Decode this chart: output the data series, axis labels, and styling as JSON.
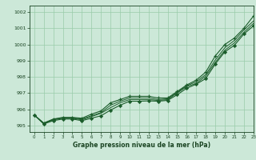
{
  "xlabel": "Graphe pression niveau de la mer (hPa)",
  "background_color": "#cce8d8",
  "grid_color": "#99ccaa",
  "line_color": "#1a5c2a",
  "xlim": [
    -0.5,
    23
  ],
  "ylim": [
    994.6,
    1002.4
  ],
  "yticks": [
    995,
    996,
    997,
    998,
    999,
    1000,
    1001,
    1002
  ],
  "xticks": [
    0,
    1,
    2,
    3,
    4,
    5,
    6,
    7,
    8,
    9,
    10,
    11,
    12,
    13,
    14,
    15,
    16,
    17,
    18,
    19,
    20,
    21,
    22,
    23
  ],
  "series1_x": [
    0,
    1,
    2,
    3,
    4,
    5,
    6,
    7,
    8,
    9,
    10,
    11,
    12,
    13,
    14,
    15,
    16,
    17,
    18,
    19,
    20,
    21,
    22,
    23
  ],
  "series1_y": [
    995.65,
    995.15,
    995.4,
    995.5,
    995.5,
    995.45,
    995.7,
    995.9,
    996.4,
    996.6,
    996.8,
    996.8,
    996.8,
    996.7,
    996.7,
    997.1,
    997.5,
    997.8,
    998.3,
    999.3,
    1000.0,
    1000.4,
    1001.0,
    1001.75
  ],
  "series2_x": [
    0,
    1,
    2,
    3,
    4,
    5,
    6,
    7,
    8,
    9,
    10,
    11,
    12,
    13,
    14,
    15,
    16,
    17,
    18,
    19,
    20,
    21,
    22,
    23
  ],
  "series2_y": [
    995.65,
    995.15,
    995.38,
    995.48,
    995.48,
    995.4,
    995.6,
    995.8,
    996.25,
    996.5,
    996.7,
    996.7,
    996.7,
    996.6,
    996.65,
    997.05,
    997.45,
    997.7,
    998.15,
    999.05,
    999.8,
    1000.25,
    1000.9,
    1001.45
  ],
  "series3_x": [
    0,
    1,
    2,
    3,
    4,
    5,
    6,
    7,
    8,
    9,
    10,
    11,
    12,
    13,
    14,
    15,
    16,
    17,
    18,
    19,
    20,
    21,
    22,
    23
  ],
  "series3_y": [
    995.65,
    995.1,
    995.35,
    995.45,
    995.45,
    995.35,
    995.55,
    995.75,
    996.1,
    996.4,
    996.6,
    996.6,
    996.6,
    996.55,
    996.6,
    997.0,
    997.4,
    997.6,
    998.05,
    998.9,
    999.65,
    1000.1,
    1000.75,
    1001.3
  ],
  "series4_x": [
    0,
    1,
    2,
    3,
    4,
    5,
    6,
    7,
    8,
    9,
    10,
    11,
    12,
    13,
    14,
    15,
    16,
    17,
    18,
    19,
    20,
    21,
    22,
    23
  ],
  "series4_y": [
    995.65,
    995.1,
    995.3,
    995.4,
    995.4,
    995.3,
    995.45,
    995.6,
    995.95,
    996.25,
    996.5,
    996.5,
    996.52,
    996.5,
    996.55,
    996.9,
    997.3,
    997.55,
    997.9,
    998.8,
    999.55,
    999.95,
    1000.65,
    1001.15
  ]
}
